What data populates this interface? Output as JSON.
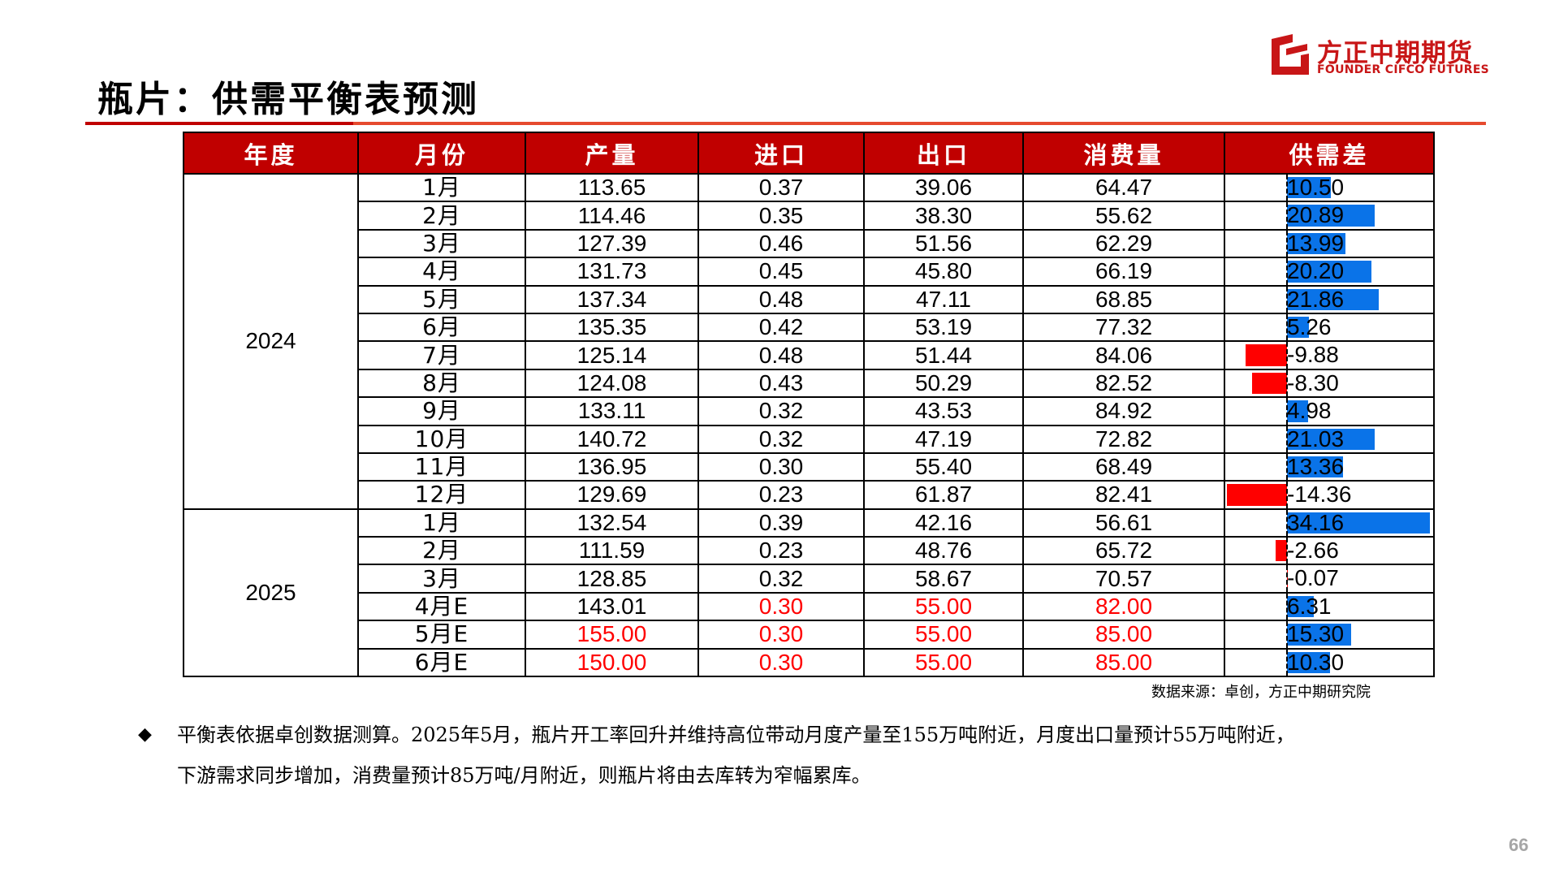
{
  "logo": {
    "cn": "方正中期期货",
    "en": "FOUNDER CIFCO FUTURES",
    "color": "#c81617"
  },
  "title": "瓶片：供需平衡表预测",
  "table": {
    "headers": [
      "年度",
      "月份",
      "产量",
      "进口",
      "出口",
      "消费量",
      "供需差"
    ],
    "years": [
      {
        "label": "2024",
        "rows": 12
      },
      {
        "label": "2025",
        "rows": 6
      }
    ],
    "rows": [
      {
        "month": "1月",
        "production": "113.65",
        "import": "0.37",
        "export": "39.06",
        "consumption": "64.47",
        "gap": "10.50",
        "gap_value": 10.5,
        "red": []
      },
      {
        "month": "2月",
        "production": "114.46",
        "import": "0.35",
        "export": "38.30",
        "consumption": "55.62",
        "gap": "20.89",
        "gap_value": 20.89,
        "red": []
      },
      {
        "month": "3月",
        "production": "127.39",
        "import": "0.46",
        "export": "51.56",
        "consumption": "62.29",
        "gap": "13.99",
        "gap_value": 13.99,
        "red": []
      },
      {
        "month": "4月",
        "production": "131.73",
        "import": "0.45",
        "export": "45.80",
        "consumption": "66.19",
        "gap": "20.20",
        "gap_value": 20.2,
        "red": []
      },
      {
        "month": "5月",
        "production": "137.34",
        "import": "0.48",
        "export": "47.11",
        "consumption": "68.85",
        "gap": "21.86",
        "gap_value": 21.86,
        "red": []
      },
      {
        "month": "6月",
        "production": "135.35",
        "import": "0.42",
        "export": "53.19",
        "consumption": "77.32",
        "gap": "5.26",
        "gap_value": 5.26,
        "red": []
      },
      {
        "month": "7月",
        "production": "125.14",
        "import": "0.48",
        "export": "51.44",
        "consumption": "84.06",
        "gap": "-9.88",
        "gap_value": -9.88,
        "red": []
      },
      {
        "month": "8月",
        "production": "124.08",
        "import": "0.43",
        "export": "50.29",
        "consumption": "82.52",
        "gap": "-8.30",
        "gap_value": -8.3,
        "red": []
      },
      {
        "month": "9月",
        "production": "133.11",
        "import": "0.32",
        "export": "43.53",
        "consumption": "84.92",
        "gap": "4.98",
        "gap_value": 4.98,
        "red": []
      },
      {
        "month": "10月",
        "production": "140.72",
        "import": "0.32",
        "export": "47.19",
        "consumption": "72.82",
        "gap": "21.03",
        "gap_value": 21.03,
        "red": []
      },
      {
        "month": "11月",
        "production": "136.95",
        "import": "0.30",
        "export": "55.40",
        "consumption": "68.49",
        "gap": "13.36",
        "gap_value": 13.36,
        "red": []
      },
      {
        "month": "12月",
        "production": "129.69",
        "import": "0.23",
        "export": "61.87",
        "consumption": "82.41",
        "gap": "-14.36",
        "gap_value": -14.36,
        "red": []
      },
      {
        "month": "1月",
        "production": "132.54",
        "import": "0.39",
        "export": "42.16",
        "consumption": "56.61",
        "gap": "34.16",
        "gap_value": 34.16,
        "red": []
      },
      {
        "month": "2月",
        "production": "111.59",
        "import": "0.23",
        "export": "48.76",
        "consumption": "65.72",
        "gap": "-2.66",
        "gap_value": -2.66,
        "red": []
      },
      {
        "month": "3月",
        "production": "128.85",
        "import": "0.32",
        "export": "58.67",
        "consumption": "70.57",
        "gap": "-0.07",
        "gap_value": -0.07,
        "red": []
      },
      {
        "month": "4月E",
        "production": "143.01",
        "import": "0.30",
        "export": "55.00",
        "consumption": "82.00",
        "gap": "6.31",
        "gap_value": 6.31,
        "red": [
          "import",
          "export",
          "consumption"
        ]
      },
      {
        "month": "5月E",
        "production": "155.00",
        "import": "0.30",
        "export": "55.00",
        "consumption": "85.00",
        "gap": "15.30",
        "gap_value": 15.3,
        "red": [
          "production",
          "import",
          "export",
          "consumption"
        ]
      },
      {
        "month": "6月E",
        "production": "150.00",
        "import": "0.30",
        "export": "55.00",
        "consumption": "85.00",
        "gap": "10.30",
        "gap_value": 10.3,
        "red": [
          "production",
          "import",
          "export",
          "consumption"
        ]
      }
    ],
    "colors": {
      "header_bg": "#c00000",
      "positive_bar": "#0a73e8",
      "negative_bar": "#ff0000",
      "estimate_text": "#ff0000"
    }
  },
  "source": "数据来源：卓创，方正中期研究院",
  "note": {
    "bullet": "◆",
    "line1": "平衡表依据卓创数据测算。2025年5月，瓶片开工率回升并维持高位带动月度产量至155万吨附近，月度出口量预计55万吨附近，",
    "line2": "下游需求同步增加，消费量预计85万吨/月附近，则瓶片将由去库转为窄幅累库。"
  },
  "page_number": "66"
}
